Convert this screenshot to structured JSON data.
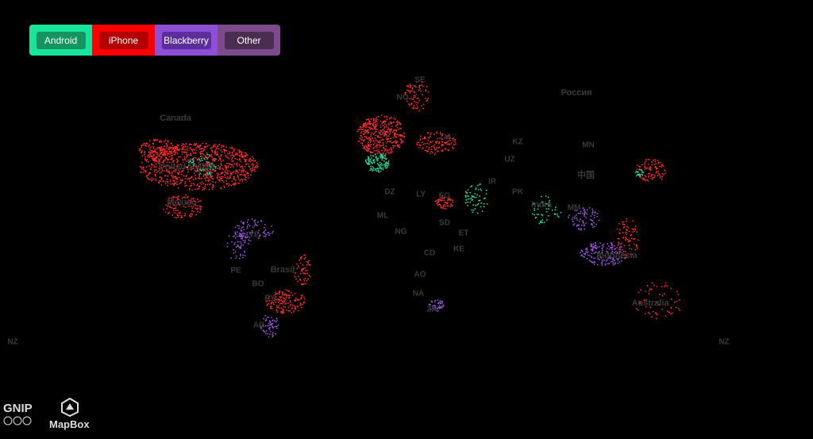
{
  "legend": {
    "buttons": [
      "Android",
      "iPhone",
      "Blackberry",
      "Other"
    ]
  },
  "map": {
    "labels": [
      "Canada",
      "United States",
      "México",
      "Brasil",
      "Россия",
      "中国",
      "India",
      "Indonesia",
      "Australia",
      "SE",
      "NO",
      "UA",
      "KZ",
      "UZ",
      "MN",
      "DZ",
      "LY",
      "EG",
      "ML",
      "NG",
      "SD",
      "ET",
      "CD",
      "KE",
      "AO",
      "NA",
      "ZA",
      "IR",
      "PK",
      "MM",
      "VE",
      "PE",
      "BO",
      "PY",
      "AR",
      "NZ",
      "NZ"
    ]
  },
  "logos": {
    "gnip": "GNIP",
    "mapbox": "MapBox"
  }
}
